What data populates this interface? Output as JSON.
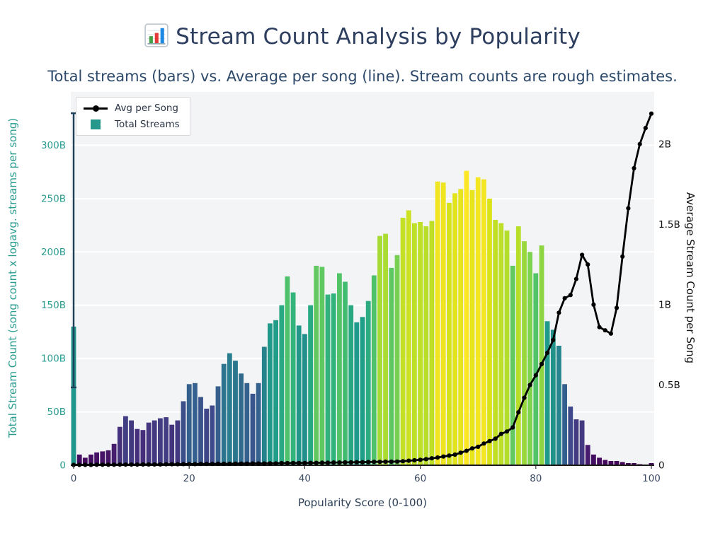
{
  "title": "Stream Count Analysis by Popularity",
  "title_icon": "bar-chart-emoji",
  "subtitle": "Total streams (bars) vs. Average per song (line). Stream counts are rough estimates.",
  "legend": {
    "position": "upper left",
    "items": [
      {
        "label": "Avg per Song",
        "glyph": "black-line-with-dot"
      },
      {
        "label": "Total Streams",
        "glyph": "teal-square"
      }
    ]
  },
  "colors": {
    "title": "#2d3e5f",
    "subtitle": "#2e4a6b",
    "axis_teal": "#2a9d8f",
    "xtick": "#3b4a63",
    "plot_bg": "#f3f4f6",
    "grid": "#ffffff",
    "line": "#000000",
    "error_bar": "#1d4058",
    "legend_square": "#26978b",
    "baseline": "#1a1a1a"
  },
  "chart_data": {
    "type": "bar+line combo (dual axis)",
    "title": "Stream Count Analysis by Popularity",
    "colormap_note": "bars colored with viridis by bar value (max 276)",
    "grid": true,
    "legend_position": "upper left",
    "x_axis": {
      "label": "Popularity Score (0-100)",
      "ticks": [
        0,
        20,
        40,
        60,
        80,
        100
      ],
      "range": [
        -0.5,
        100.5
      ]
    },
    "y_left": {
      "label": "Total Stream Count (song count x logavg. streams per song)",
      "tick_labels": [
        "0",
        "50B",
        "100B",
        "150B",
        "200B",
        "250B",
        "300B"
      ],
      "tick_values": [
        0,
        50,
        100,
        150,
        200,
        250,
        300
      ],
      "range": [
        0,
        350
      ],
      "unit": "billions of streams"
    },
    "y_right": {
      "label": "Average Stream Count per Song",
      "tick_labels": [
        "0",
        "0.5B",
        "1B",
        "1.5B",
        "2B"
      ],
      "tick_values": [
        0,
        0.5,
        1,
        1.5,
        2
      ],
      "range": [
        0,
        2.325
      ],
      "unit": "billions of streams"
    },
    "x": [
      0,
      1,
      2,
      3,
      4,
      5,
      6,
      7,
      8,
      9,
      10,
      11,
      12,
      13,
      14,
      15,
      16,
      17,
      18,
      19,
      20,
      21,
      22,
      23,
      24,
      25,
      26,
      27,
      28,
      29,
      30,
      31,
      32,
      33,
      34,
      35,
      36,
      37,
      38,
      39,
      40,
      41,
      42,
      43,
      44,
      45,
      46,
      47,
      48,
      49,
      50,
      51,
      52,
      53,
      54,
      55,
      56,
      57,
      58,
      59,
      60,
      61,
      62,
      63,
      64,
      65,
      66,
      67,
      68,
      69,
      70,
      71,
      72,
      73,
      74,
      75,
      76,
      77,
      78,
      79,
      80,
      81,
      82,
      83,
      84,
      85,
      86,
      87,
      88,
      89,
      90,
      91,
      92,
      93,
      94,
      95,
      96,
      97,
      98,
      99,
      100
    ],
    "series": [
      {
        "name": "Total Streams",
        "type": "bar",
        "axis": "left",
        "unit": "B",
        "values": [
          130,
          10,
          7,
          10,
          12,
          13,
          14,
          20,
          36,
          46,
          42,
          34,
          33,
          40,
          42,
          44,
          45,
          38,
          42,
          60,
          76,
          77,
          64,
          53,
          56,
          74,
          95,
          105,
          98,
          86,
          77,
          67,
          77,
          111,
          133,
          136,
          150,
          177,
          162,
          131,
          123,
          150,
          187,
          186,
          160,
          161,
          180,
          172,
          150,
          134,
          139,
          154,
          178,
          215,
          217,
          185,
          197,
          232,
          239,
          227,
          228,
          224,
          229,
          266,
          265,
          246,
          255,
          259,
          276,
          258,
          270,
          268,
          250,
          230,
          227,
          220,
          187,
          224,
          210,
          200,
          180,
          206,
          135,
          127,
          112,
          76,
          55,
          43,
          42,
          19,
          10,
          7,
          5,
          4,
          4,
          3,
          2,
          2,
          1,
          0.5,
          2
        ],
        "error_bar": {
          "x": 0,
          "low": 73,
          "high": 330
        }
      },
      {
        "name": "Avg per Song",
        "type": "line",
        "axis": "right",
        "unit": "B",
        "marker": "circle",
        "values": [
          0.002,
          0.002,
          0.002,
          0.002,
          0.003,
          0.003,
          0.003,
          0.003,
          0.004,
          0.004,
          0.004,
          0.004,
          0.005,
          0.005,
          0.005,
          0.005,
          0.006,
          0.006,
          0.006,
          0.007,
          0.007,
          0.007,
          0.008,
          0.008,
          0.008,
          0.009,
          0.009,
          0.009,
          0.01,
          0.01,
          0.01,
          0.011,
          0.011,
          0.011,
          0.012,
          0.012,
          0.013,
          0.013,
          0.014,
          0.014,
          0.014,
          0.015,
          0.015,
          0.016,
          0.016,
          0.017,
          0.017,
          0.018,
          0.018,
          0.019,
          0.019,
          0.02,
          0.021,
          0.021,
          0.022,
          0.022,
          0.023,
          0.025,
          0.028,
          0.031,
          0.034,
          0.038,
          0.043,
          0.048,
          0.054,
          0.06,
          0.066,
          0.078,
          0.09,
          0.105,
          0.115,
          0.135,
          0.15,
          0.165,
          0.195,
          0.21,
          0.235,
          0.33,
          0.42,
          0.5,
          0.56,
          0.63,
          0.7,
          0.78,
          0.95,
          1.04,
          1.06,
          1.16,
          1.31,
          1.25,
          1.0,
          0.86,
          0.84,
          0.82,
          0.98,
          1.3,
          1.6,
          1.85,
          2.0,
          2.1,
          2.19
        ]
      }
    ]
  }
}
